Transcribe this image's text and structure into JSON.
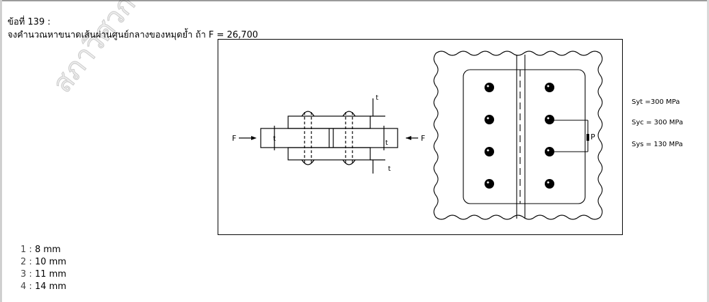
{
  "watermark": "สภาวิศวกร ขอ",
  "question": {
    "number_label": "ข้อที่ 139 :",
    "text": "จงคำนวณหาขนาดเส้นผ่านศูนย์กลางของหมุดย้ำ ถ้า F = 26,700"
  },
  "figure": {
    "left_force": "F",
    "right_force": "F",
    "t_top": "t",
    "t_bottom": "t",
    "t_mid": "t",
    "t_right": "t",
    "pitch": "P"
  },
  "properties": {
    "syt": "Syt =300 MPa",
    "syc": "Syc = 300 MPa",
    "sys": "Sys = 130 MPa"
  },
  "choices": [
    {
      "num": "1",
      "sep": " : ",
      "label": "8 mm"
    },
    {
      "num": "2",
      "sep": " : ",
      "label": "10 mm"
    },
    {
      "num": "3",
      "sep": " : ",
      "label": "11 mm"
    },
    {
      "num": "4",
      "sep": " : ",
      "label": "14 mm"
    }
  ]
}
